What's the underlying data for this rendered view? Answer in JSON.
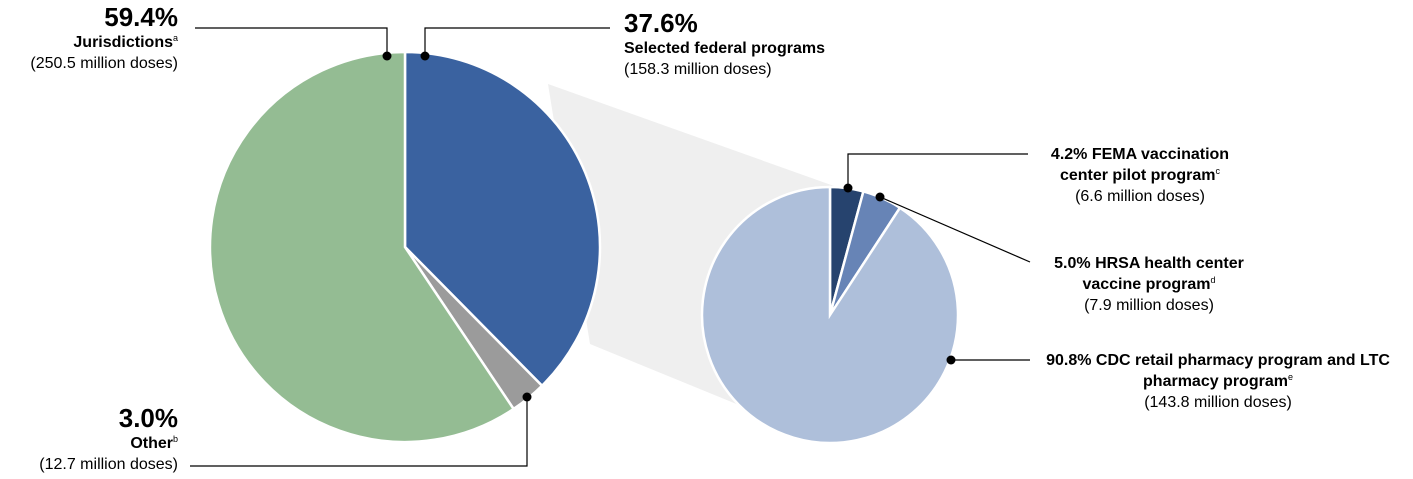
{
  "chart_data": [
    {
      "type": "pie",
      "categories": [
        "Selected federal programs",
        "Other",
        "Jurisdictions"
      ],
      "values": [
        37.6,
        3.0,
        59.4
      ],
      "value_labels": [
        "37.6%",
        "3.0%",
        "59.4%"
      ],
      "footnotes": [
        null,
        "b",
        "a"
      ],
      "doses": [
        "(158.3 million doses)",
        "(12.7 million doses)",
        "(250.5 million doses)"
      ],
      "colors": [
        "#3a62a0",
        "#9b9b9b",
        "#94bc93"
      ]
    },
    {
      "type": "pie",
      "categories": [
        "FEMA vaccination center pilot program",
        "HRSA health center vaccine program",
        "CDC retail pharmacy program and LTC pharmacy program"
      ],
      "values": [
        4.2,
        5.0,
        90.8
      ],
      "value_labels": [
        "4.2%",
        "5.0%",
        "90.8%"
      ],
      "footnotes": [
        "c",
        "d",
        "e"
      ],
      "doses": [
        "(6.6 million doses)",
        "(7.9 million doses)",
        "(143.8 million doses)"
      ],
      "colors": [
        "#26436e",
        "#6784b6",
        "#aebfda"
      ]
    }
  ]
}
